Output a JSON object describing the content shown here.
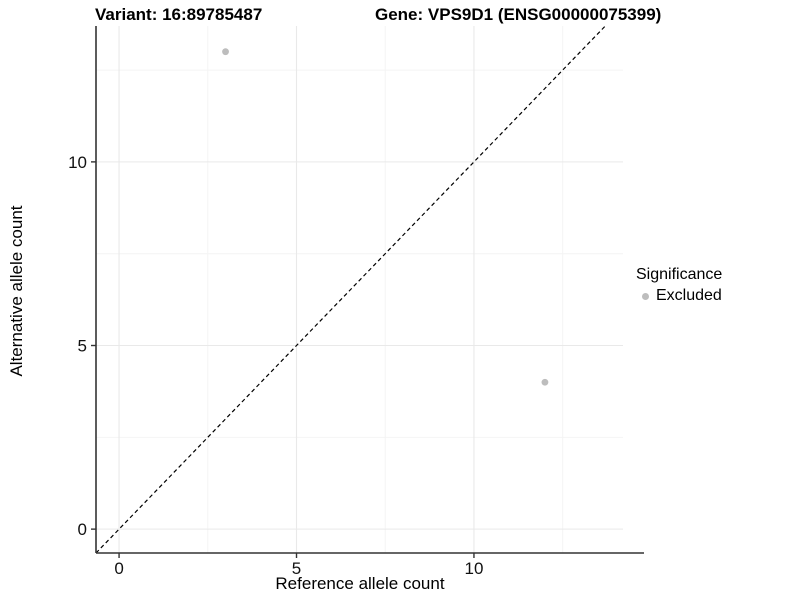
{
  "chart_data": {
    "type": "scatter",
    "titles": {
      "variant": "Variant: 16:89785487",
      "gene": "Gene: VPS9D1 (ENSG00000075399)"
    },
    "xlabel": "Reference allele count",
    "ylabel": "Alternative allele count",
    "x_ticks": [
      0,
      5,
      10
    ],
    "y_ticks": [
      0,
      5,
      10
    ],
    "x_minor_ticks": [
      2.5,
      7.5,
      12.5
    ],
    "y_minor_ticks": [
      2.5,
      7.5,
      12.5
    ],
    "xlim": [
      -0.65,
      14.2
    ],
    "ylim": [
      -0.65,
      13.7
    ],
    "grid": "major+minor",
    "series": [
      {
        "name": "Excluded",
        "color": "#bdbdbd",
        "points": [
          {
            "x": 3,
            "y": 13
          },
          {
            "x": 12,
            "y": 4
          }
        ]
      }
    ],
    "reference_line": {
      "style": "dashed",
      "color": "#000000",
      "equation": "y = x"
    },
    "legend": {
      "title": "Significance",
      "position": "right",
      "entries": [
        {
          "label": "Excluded",
          "color": "#bdbdbd"
        }
      ]
    },
    "colors": {
      "grid_major": "#e9e9e9",
      "grid_minor": "#f4f4f4",
      "axis_line": "#333333",
      "tick_label": "#111111"
    }
  }
}
